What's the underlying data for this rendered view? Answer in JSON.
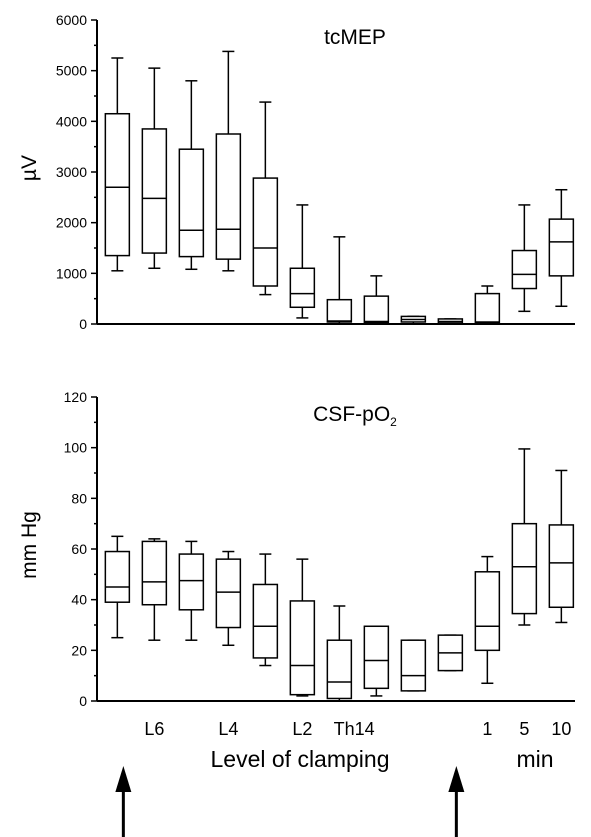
{
  "chart_data": [
    {
      "type": "box",
      "title": "tcMEP",
      "ylabel": "µV",
      "ylim": [
        0,
        6000
      ],
      "yticks": [
        0,
        1000,
        2000,
        3000,
        4000,
        5000,
        6000
      ],
      "grid": false,
      "boxes": [
        {
          "min": 1050,
          "q1": 1350,
          "median": 2700,
          "q3": 4150,
          "max": 5250
        },
        {
          "min": 1100,
          "q1": 1400,
          "median": 2480,
          "q3": 3850,
          "max": 5050
        },
        {
          "min": 1080,
          "q1": 1330,
          "median": 1850,
          "q3": 3450,
          "max": 4800
        },
        {
          "min": 1050,
          "q1": 1280,
          "median": 1870,
          "q3": 3750,
          "max": 5380
        },
        {
          "min": 580,
          "q1": 750,
          "median": 1500,
          "q3": 2880,
          "max": 4380
        },
        {
          "min": 120,
          "q1": 330,
          "median": 600,
          "q3": 1100,
          "max": 2350
        },
        {
          "min": 0,
          "q1": 40,
          "median": 60,
          "q3": 480,
          "max": 1720
        },
        {
          "min": 0,
          "q1": 30,
          "median": 50,
          "q3": 550,
          "max": 950
        },
        {
          "min": 0,
          "q1": 40,
          "median": 90,
          "q3": 150,
          "max": 150
        },
        {
          "min": 0,
          "q1": 20,
          "median": 50,
          "q3": 100,
          "max": 100
        },
        {
          "min": 0,
          "q1": 30,
          "median": 40,
          "q3": 600,
          "max": 750
        },
        {
          "min": 250,
          "q1": 700,
          "median": 980,
          "q3": 1450,
          "max": 2350
        },
        {
          "min": 350,
          "q1": 950,
          "median": 1620,
          "q3": 2070,
          "max": 2650
        }
      ]
    },
    {
      "type": "box",
      "title": "CSF-pO",
      "title_sub": "2",
      "ylabel": "mm Hg",
      "ylim": [
        0,
        120
      ],
      "yticks": [
        0,
        20,
        40,
        60,
        80,
        100,
        120
      ],
      "grid": false,
      "xlabel": "Level of clamping",
      "xlabel_right": "min",
      "category_labels": [
        {
          "label": "L6",
          "position": 2
        },
        {
          "label": "L4",
          "position": 4
        },
        {
          "label": "L2",
          "position": 6
        },
        {
          "label": "Th14",
          "position": 7.4
        },
        {
          "label": "1",
          "position": 11
        },
        {
          "label": "5",
          "position": 12
        },
        {
          "label": "10",
          "position": 13
        }
      ],
      "boxes": [
        {
          "min": 25,
          "q1": 39,
          "median": 45,
          "q3": 59,
          "max": 65
        },
        {
          "min": 24,
          "q1": 38,
          "median": 47,
          "q3": 63,
          "max": 64
        },
        {
          "min": 24,
          "q1": 36,
          "median": 47.5,
          "q3": 58,
          "max": 63
        },
        {
          "min": 22,
          "q1": 29,
          "median": 43,
          "q3": 56,
          "max": 59
        },
        {
          "min": 14,
          "q1": 17,
          "median": 29.5,
          "q3": 46,
          "max": 58
        },
        {
          "min": 2,
          "q1": 2.5,
          "median": 14,
          "q3": 39.5,
          "max": 56
        },
        {
          "min": 0,
          "q1": 1,
          "median": 7.5,
          "q3": 24,
          "max": 37.5
        },
        {
          "min": 2,
          "q1": 5,
          "median": 16,
          "q3": 29.5,
          "max": 29.5
        },
        {
          "min": 4,
          "q1": 4,
          "median": 10,
          "q3": 24,
          "max": 24
        },
        {
          "min": 12,
          "q1": 12,
          "median": 19,
          "q3": 26,
          "max": 26
        },
        {
          "min": 7,
          "q1": 20,
          "median": 29.5,
          "q3": 51,
          "max": 57
        },
        {
          "min": 30,
          "q1": 34.5,
          "median": 53,
          "q3": 70,
          "max": 99.5
        },
        {
          "min": 31,
          "q1": 37,
          "median": 54.5,
          "q3": 69.5,
          "max": 91
        }
      ]
    }
  ],
  "annotations": {
    "arrows": [
      {
        "name": "start-arrow",
        "at_position": 1
      },
      {
        "name": "end-arrow",
        "at_position": 10
      }
    ]
  }
}
